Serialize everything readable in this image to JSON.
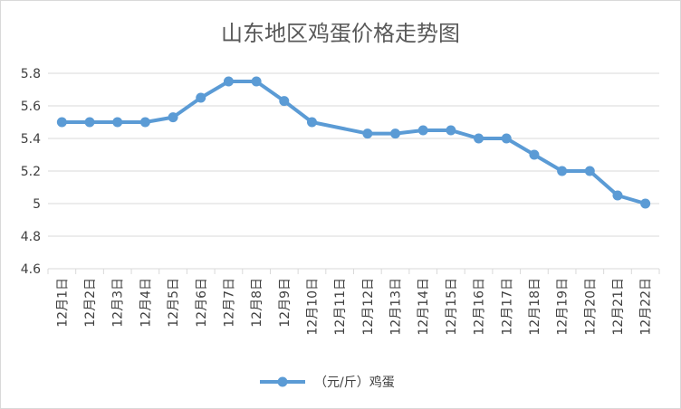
{
  "chart_data": {
    "type": "line",
    "title": "山东地区鸡蛋价格走势图",
    "xlabel": "",
    "ylabel": "",
    "categories": [
      "12月1日",
      "12月2日",
      "12月3日",
      "12月4日",
      "12月5日",
      "12月6日",
      "12月7日",
      "12月8日",
      "12月9日",
      "12月10日",
      "12月11日",
      "12月12日",
      "12月13日",
      "12月14日",
      "12月15日",
      "12月16日",
      "12月17日",
      "12月18日",
      "12月19日",
      "12月20日",
      "12月21日",
      "12月22日"
    ],
    "series": [
      {
        "name": "（元/斤）鸡蛋",
        "values": [
          5.5,
          5.5,
          5.5,
          5.5,
          5.53,
          5.65,
          5.75,
          5.75,
          5.63,
          5.5,
          null,
          5.43,
          5.43,
          5.45,
          5.45,
          5.4,
          5.4,
          5.3,
          5.2,
          5.2,
          5.05,
          5.0
        ]
      }
    ],
    "ylim": [
      4.6,
      5.8
    ],
    "yticks": [
      4.6,
      4.8,
      5,
      5.2,
      5.4,
      5.6,
      5.8
    ],
    "grid": true,
    "legend": "bottom",
    "colors": {
      "series": "#5b9bd5",
      "grid": "#d9d9d9",
      "text": "#404040"
    }
  }
}
